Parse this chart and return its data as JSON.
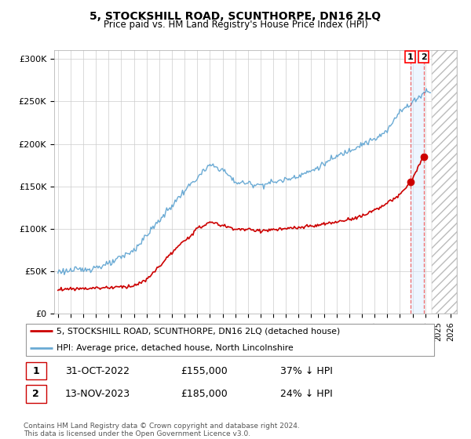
{
  "title": "5, STOCKSHILL ROAD, SCUNTHORPE, DN16 2LQ",
  "subtitle": "Price paid vs. HM Land Registry's House Price Index (HPI)",
  "ylabel_ticks": [
    "£0",
    "£50K",
    "£100K",
    "£150K",
    "£200K",
    "£250K",
    "£300K"
  ],
  "ytick_values": [
    0,
    50000,
    100000,
    150000,
    200000,
    250000,
    300000
  ],
  "ylim": [
    0,
    310000
  ],
  "xlim_start": 1994.7,
  "xlim_end": 2026.5,
  "hpi_color": "#6aaad4",
  "price_color": "#cc0000",
  "sale1_date": "31-OCT-2022",
  "sale1_price": "£155,000",
  "sale1_pct": "37% ↓ HPI",
  "sale2_date": "13-NOV-2023",
  "sale2_price": "£185,000",
  "sale2_pct": "24% ↓ HPI",
  "legend_label1": "5, STOCKSHILL ROAD, SCUNTHORPE, DN16 2LQ (detached house)",
  "legend_label2": "HPI: Average price, detached house, North Lincolnshire",
  "footnote": "Contains HM Land Registry data © Crown copyright and database right 2024.\nThis data is licensed under the Open Government Licence v3.0.",
  "sale1_x": 2022.83,
  "sale1_y": 155000,
  "sale2_x": 2023.87,
  "sale2_y": 185000,
  "vline1_x": 2022.83,
  "vline2_x": 2023.87,
  "background_color": "#ffffff",
  "grid_color": "#cccccc",
  "hatch_start": 2024.5
}
